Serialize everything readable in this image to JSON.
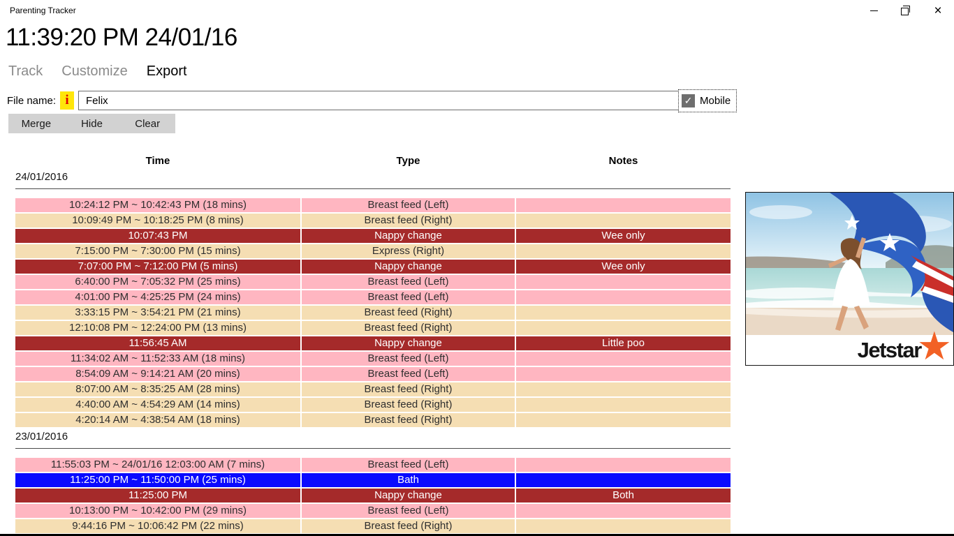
{
  "window": {
    "title": "Parenting Tracker"
  },
  "clock": {
    "display": "11:39:20 PM 24/01/16"
  },
  "tabs": [
    {
      "label": "Track",
      "active": false
    },
    {
      "label": "Customize",
      "active": false
    },
    {
      "label": "Export",
      "active": true
    }
  ],
  "file_row": {
    "label": "File name:",
    "info_glyph": "i",
    "value": "Felix",
    "mobile_label": "Mobile",
    "mobile_checked": true
  },
  "icons": {
    "check": "✓"
  },
  "toolbar": {
    "buttons": [
      {
        "label": "Merge"
      },
      {
        "label": "Hide"
      },
      {
        "label": "Clear"
      }
    ]
  },
  "table": {
    "headers": [
      "Time",
      "Type",
      "Notes"
    ],
    "groups": [
      {
        "date": "24/01/2016",
        "rows": [
          {
            "time": "10:24:12 PM ~ 10:42:43 PM (18 mins)",
            "type": "Breast feed (Left)",
            "notes": "",
            "color": "pink"
          },
          {
            "time": "10:09:49 PM ~ 10:18:25 PM (8 mins)",
            "type": "Breast feed (Right)",
            "notes": "",
            "color": "wheat"
          },
          {
            "time": "10:07:43 PM",
            "type": "Nappy change",
            "notes": "Wee only",
            "color": "red"
          },
          {
            "time": "7:15:00 PM ~ 7:30:00 PM (15 mins)",
            "type": "Express (Right)",
            "notes": "",
            "color": "wheat"
          },
          {
            "time": "7:07:00 PM ~ 7:12:00 PM (5 mins)",
            "type": "Nappy change",
            "notes": "Wee only",
            "color": "red"
          },
          {
            "time": "6:40:00 PM ~ 7:05:32 PM (25 mins)",
            "type": "Breast feed (Left)",
            "notes": "",
            "color": "pink"
          },
          {
            "time": "4:01:00 PM ~ 4:25:25 PM (24 mins)",
            "type": "Breast feed (Left)",
            "notes": "",
            "color": "pink"
          },
          {
            "time": "3:33:15 PM ~ 3:54:21 PM (21 mins)",
            "type": "Breast feed (Right)",
            "notes": "",
            "color": "wheat"
          },
          {
            "time": "12:10:08 PM ~ 12:24:00 PM (13 mins)",
            "type": "Breast feed (Right)",
            "notes": "",
            "color": "wheat"
          },
          {
            "time": "11:56:45 AM",
            "type": "Nappy change",
            "notes": "Little poo",
            "color": "red"
          },
          {
            "time": "11:34:02 AM ~ 11:52:33 AM (18 mins)",
            "type": "Breast feed (Left)",
            "notes": "",
            "color": "pink"
          },
          {
            "time": "8:54:09 AM ~ 9:14:21 AM (20 mins)",
            "type": "Breast feed (Left)",
            "notes": "",
            "color": "pink"
          },
          {
            "time": "8:07:00 AM ~ 8:35:25 AM (28 mins)",
            "type": "Breast feed (Right)",
            "notes": "",
            "color": "wheat"
          },
          {
            "time": "4:40:00 AM ~ 4:54:29 AM (14 mins)",
            "type": "Breast feed (Right)",
            "notes": "",
            "color": "wheat"
          },
          {
            "time": "4:20:14 AM ~ 4:38:54 AM (18 mins)",
            "type": "Breast feed (Right)",
            "notes": "",
            "color": "wheat"
          }
        ]
      },
      {
        "date": "23/01/2016",
        "rows": [
          {
            "time": "11:55:03 PM ~ 24/01/16 12:03:00 AM (7 mins)",
            "type": "Breast feed (Left)",
            "notes": "",
            "color": "pink"
          },
          {
            "time": "11:25:00 PM ~ 11:50:00 PM (25 mins)",
            "type": "Bath",
            "notes": "",
            "color": "blue"
          },
          {
            "time": "11:25:00 PM",
            "type": "Nappy change",
            "notes": "Both",
            "color": "red"
          },
          {
            "time": "10:13:00 PM ~ 10:42:00 PM (29 mins)",
            "type": "Breast feed (Left)",
            "notes": "",
            "color": "pink"
          },
          {
            "time": "9:44:16 PM ~ 10:06:42 PM (22 mins)",
            "type": "Breast feed (Right)",
            "notes": "",
            "color": "wheat"
          }
        ]
      }
    ]
  },
  "ad": {
    "brand": "Jetstar",
    "star_glyph": "★"
  },
  "colors": {
    "row_styles": {
      "pink": {
        "bg": "#FFB6C1",
        "fg": "#2e2e2e"
      },
      "wheat": {
        "bg": "#F5DEB3",
        "fg": "#2e2e2e"
      },
      "red": {
        "bg": "#A52A2A",
        "fg": "#FFFFFF"
      },
      "blue": {
        "bg": "#0A0AFF",
        "fg": "#FFFFFF"
      }
    },
    "info_icon_bg": "#FFE60A",
    "info_icon_fg": "#E00000",
    "ad_star": "#F26125"
  }
}
